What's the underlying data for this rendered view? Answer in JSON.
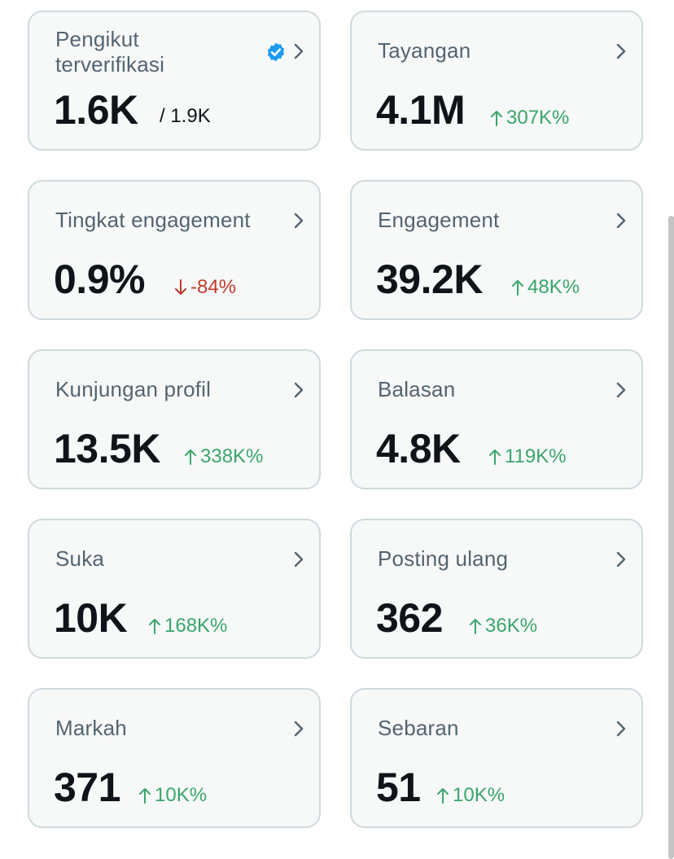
{
  "colors": {
    "card_bg": "#f7f9f9",
    "card_border": "#cfd9de",
    "label": "#536471",
    "value": "#0f1419",
    "up": "#3aa56a",
    "down": "#c0392b",
    "verified": "#1d9bf0"
  },
  "cards": [
    {
      "label": "Pengikut terverifikasi",
      "value": "1.6K",
      "sub": "/ 1.9K",
      "icon": "verified-badge-icon"
    },
    {
      "label": "Tayangan",
      "value": "4.1M",
      "change": "307K%",
      "direction": "up"
    },
    {
      "label": "Tingkat engagement",
      "value": "0.9%",
      "change": "-84%",
      "direction": "down"
    },
    {
      "label": "Engagement",
      "value": "39.2K",
      "change": "48K%",
      "direction": "up"
    },
    {
      "label": "Kunjungan profil",
      "value": "13.5K",
      "change": "338K%",
      "direction": "up"
    },
    {
      "label": "Balasan",
      "value": "4.8K",
      "change": "119K%",
      "direction": "up"
    },
    {
      "label": "Suka",
      "value": "10K",
      "change": "168K%",
      "direction": "up"
    },
    {
      "label": "Posting ulang",
      "value": "362",
      "change": "36K%",
      "direction": "up"
    },
    {
      "label": "Markah",
      "value": "371",
      "change": "10K%",
      "direction": "up"
    },
    {
      "label": "Sebaran",
      "value": "51",
      "change": "10K%",
      "direction": "up"
    }
  ]
}
